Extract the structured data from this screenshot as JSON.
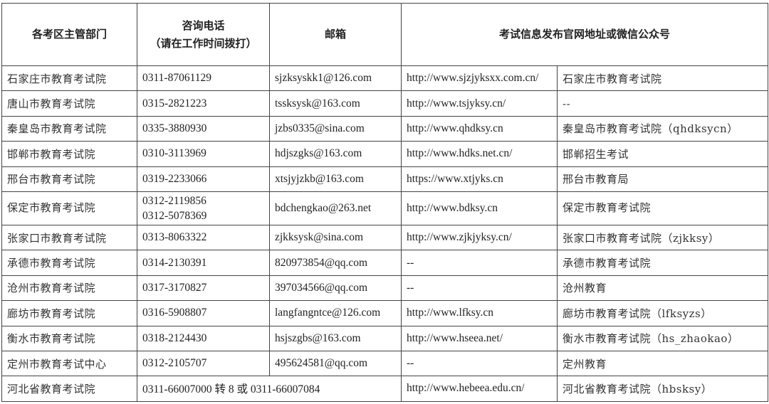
{
  "headers": {
    "dept": "各考区主管部门",
    "phone_line1": "咨询电话",
    "phone_line2": "（请在工作时间拨打）",
    "email": "邮箱",
    "info": "考试信息发布官网地址或微信公众号"
  },
  "rows": [
    {
      "dept": "石家庄市教育考试院",
      "phone": "0311-87061129",
      "email": "sjzksyskk1@126.com",
      "site": "http://www.sjzjyksxx.com.cn/",
      "wechat": "石家庄市教育考试院"
    },
    {
      "dept": "唐山市教育考试院",
      "phone": "0315-2821223",
      "email": "tssksysk@163.com",
      "site": "http://www.tsjyksy.cn/",
      "wechat": "--"
    },
    {
      "dept": "秦皇岛市教育考试院",
      "phone": "0335-3880930",
      "email": "jzbs0335@sina.com",
      "site": "http://www.qhdksy.cn",
      "wechat": "秦皇岛市教育考试院（qhdksycn）"
    },
    {
      "dept": "邯郸市教育考试院",
      "phone": "0310-3113969",
      "email": "hdjszgks@163.com",
      "site": "http://www.hdks.net.cn/",
      "wechat": "邯郸招生考试"
    },
    {
      "dept": "邢台市教育考试院",
      "phone": "0319-2233066",
      "email": "xtsjyjzkb@163.com",
      "site": "https://www.xtjyks.cn",
      "wechat": "邢台市教育局"
    },
    {
      "dept": "保定市教育考试院",
      "phone": "0312-2119856",
      "phone2": "0312-5078369",
      "email": "bdchengkao@263.net",
      "site": "http://www.bdksy.cn",
      "wechat": "保定市教育考试院"
    },
    {
      "dept": "张家口市教育考试院",
      "phone": "0313-8063322",
      "email": "zjkksysk@sina.com",
      "site": "http://www.zjkjyksy.cn/",
      "wechat": "张家口市教育考试院（zjkksy）"
    },
    {
      "dept": "承德市教育考试院",
      "phone": "0314-2130391",
      "email": "820973854@qq.com",
      "site": "--",
      "wechat": "承德市教育考试院"
    },
    {
      "dept": "沧州市教育考试院",
      "phone": "0317-3170827",
      "email": "397034566@qq.com",
      "site": "--",
      "wechat": "沧州教育"
    },
    {
      "dept": "廊坊市教育考试院",
      "phone": "0316-5908807",
      "email": "langfangntce@126.com",
      "site": "http://www.lfksy.cn",
      "wechat": "廊坊市教育考试院（lfksyzs）"
    },
    {
      "dept": "衡水市教育考试院",
      "phone": "0318-2124430",
      "email": "hsjszgbs@163.com",
      "site": "http://www.hseea.net/",
      "wechat": "衡水市教育考试院（hs_zhaokao）"
    },
    {
      "dept": "定州市教育考试中心",
      "phone": "0312-2105707",
      "email": "495624581@qq.com",
      "site": "--",
      "wechat": "定州教育"
    }
  ],
  "province": {
    "dept": "河北省教育考试院",
    "phone": "0311-66007000 转 8 或 0311-66007084",
    "site": "http://www.hebeea.edu.cn/",
    "wechat": "河北省教育考试院（hbsksy）"
  }
}
